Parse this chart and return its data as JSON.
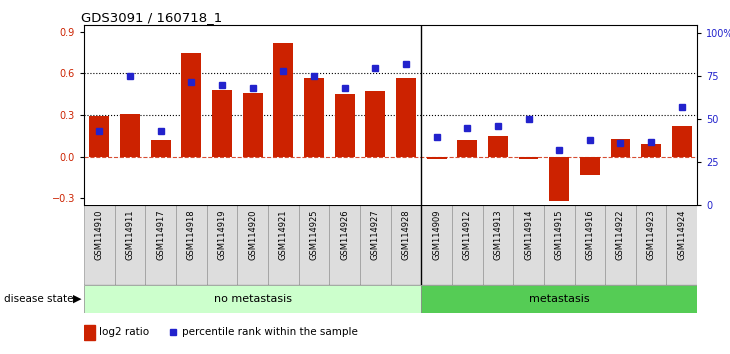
{
  "title": "GDS3091 / 160718_1",
  "samples": [
    "GSM114910",
    "GSM114911",
    "GSM114917",
    "GSM114918",
    "GSM114919",
    "GSM114920",
    "GSM114921",
    "GSM114925",
    "GSM114926",
    "GSM114927",
    "GSM114928",
    "GSM114909",
    "GSM114912",
    "GSM114913",
    "GSM114914",
    "GSM114915",
    "GSM114916",
    "GSM114922",
    "GSM114923",
    "GSM114924"
  ],
  "log2_ratio": [
    0.29,
    0.31,
    0.12,
    0.75,
    0.48,
    0.46,
    0.82,
    0.57,
    0.45,
    0.47,
    0.57,
    -0.02,
    0.12,
    0.15,
    -0.02,
    -0.32,
    -0.13,
    0.13,
    0.09,
    0.22
  ],
  "percentile": [
    43,
    75,
    43,
    72,
    70,
    68,
    78,
    75,
    68,
    80,
    82,
    40,
    45,
    46,
    50,
    32,
    38,
    36,
    37,
    57
  ],
  "no_metastasis_count": 11,
  "metastasis_count": 9,
  "bar_color": "#cc2200",
  "dot_color": "#2222cc",
  "ylim_left": [
    -0.35,
    0.95
  ],
  "ylim_right": [
    0,
    105
  ],
  "yticks_left": [
    -0.3,
    0.0,
    0.3,
    0.6,
    0.9
  ],
  "yticks_right": [
    0,
    25,
    50,
    75,
    100
  ],
  "ytick_right_labels": [
    "0",
    "25",
    "50",
    "75",
    "100%"
  ],
  "hline_values": [
    0.3,
    0.6
  ],
  "no_metastasis_color": "#ccffcc",
  "metastasis_color": "#55cc55",
  "cell_color": "#dddddd",
  "cell_edge_color": "#999999",
  "legend_bar_label": "log2 ratio",
  "legend_dot_label": "percentile rank within the sample"
}
